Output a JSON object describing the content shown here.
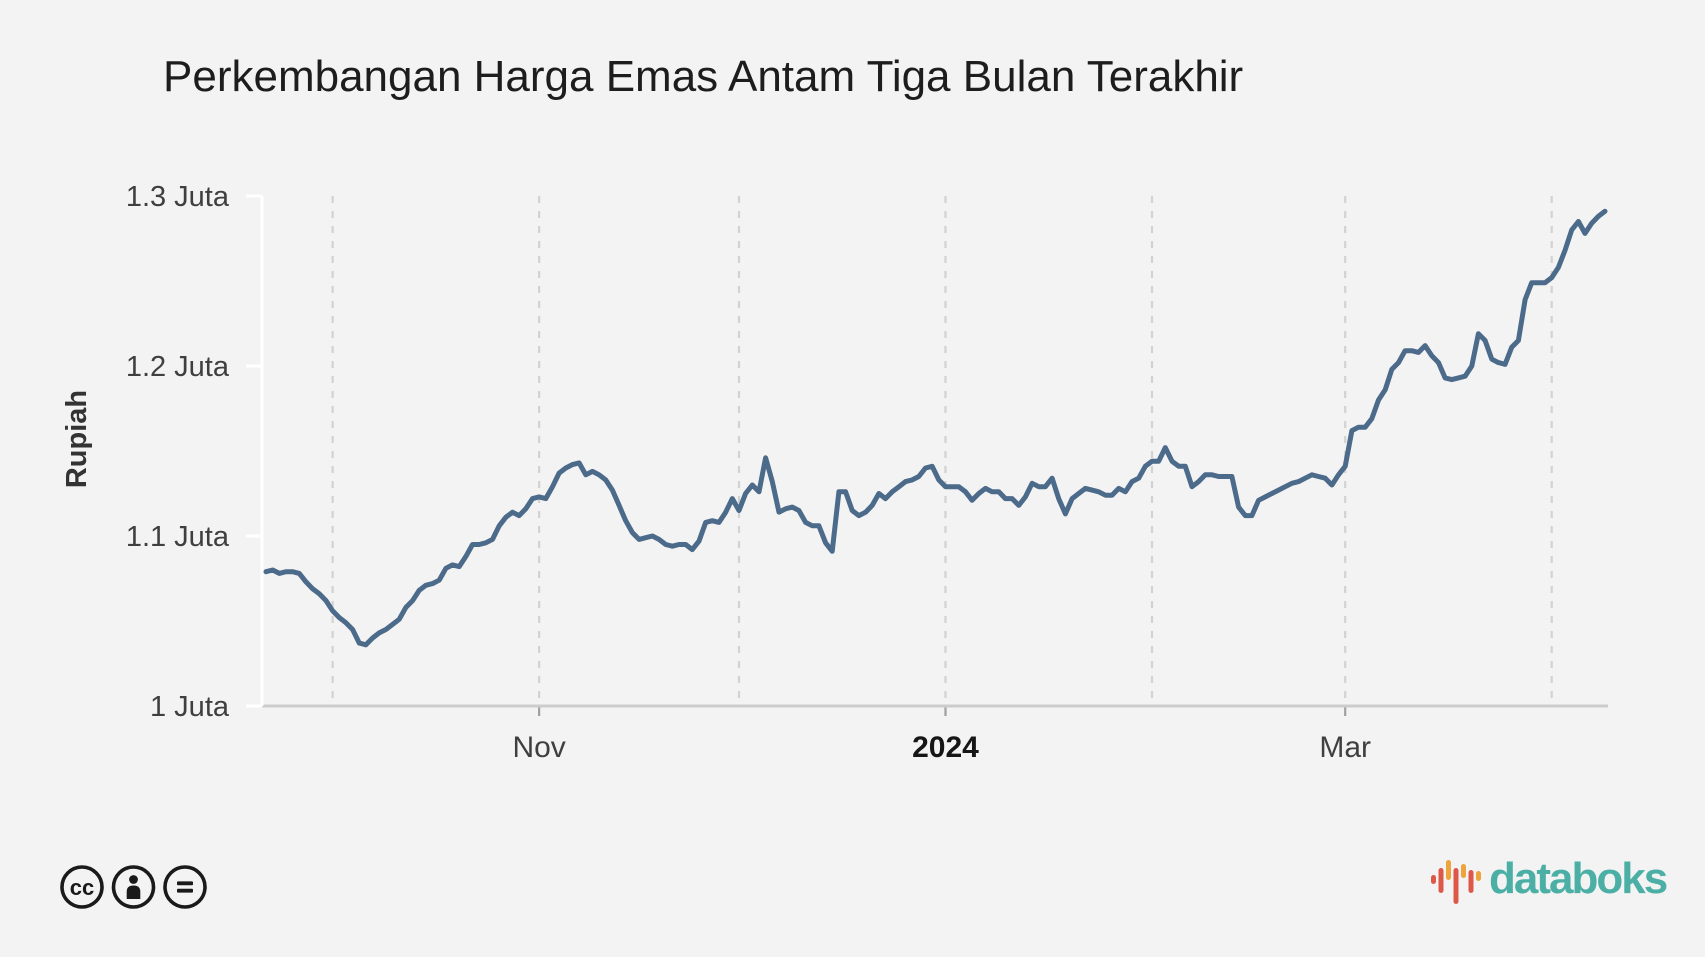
{
  "title": "Perkembangan Harga Emas Antam Tiga Bulan Terakhir",
  "y_axis": {
    "title": "Rupiah",
    "ticks": [
      {
        "value": 1.0,
        "label": "1 Juta"
      },
      {
        "value": 1.1,
        "label": "1.1 Juta"
      },
      {
        "value": 1.2,
        "label": "1.2 Juta"
      },
      {
        "value": 1.3,
        "label": "1.3 Juta"
      }
    ]
  },
  "x_axis": {
    "gridlines": [
      {
        "date": "2023-10-01",
        "label": ""
      },
      {
        "date": "2023-11-01",
        "label": "Nov",
        "bold": false
      },
      {
        "date": "2023-12-01",
        "label": ""
      },
      {
        "date": "2024-01-01",
        "label": "2024",
        "bold": true
      },
      {
        "date": "2024-02-01",
        "label": ""
      },
      {
        "date": "2024-03-01",
        "label": "Mar",
        "bold": false
      },
      {
        "date": "2024-04-01",
        "label": ""
      }
    ]
  },
  "footer": {
    "license_icons": [
      "cc",
      "by",
      "nd"
    ],
    "brand": "databoks"
  },
  "colors": {
    "background": "#f3f3f3",
    "line": "#4c6a8a",
    "gridline": "#d2d2d2",
    "axis_line": "#cccccc",
    "y_axis_line": "#ffffff",
    "tick_mark": "#a0a0a0",
    "title_text": "#1d1d1d",
    "axis_text": "#3f3f3f",
    "bold_tick_text": "#161616",
    "license_icon": "#1a1a1a",
    "brand_teal": "#4bafa5",
    "logo_orange": "#eea43c",
    "logo_red": "#de584a"
  },
  "chart_data": {
    "type": "line",
    "title": "Perkembangan Harga Emas Antam Tiga Bulan Terakhir",
    "ylabel": "Rupiah",
    "unit": "Juta Rupiah",
    "ylim": [
      1.0,
      1.3
    ],
    "grid": "vertical-dashed",
    "legend": "none",
    "frequency": "daily",
    "start_date": "2023-09-21",
    "end_date": "2024-04-09",
    "series": [
      {
        "name": "Harga emas Antam (juta rupiah)",
        "values": [
          1.079,
          1.08,
          1.078,
          1.079,
          1.079,
          1.078,
          1.073,
          1.069,
          1.066,
          1.062,
          1.056,
          1.052,
          1.049,
          1.045,
          1.037,
          1.036,
          1.04,
          1.043,
          1.045,
          1.048,
          1.051,
          1.058,
          1.062,
          1.068,
          1.071,
          1.072,
          1.074,
          1.081,
          1.083,
          1.082,
          1.088,
          1.095,
          1.095,
          1.096,
          1.098,
          1.106,
          1.111,
          1.114,
          1.112,
          1.116,
          1.122,
          1.123,
          1.122,
          1.129,
          1.137,
          1.14,
          1.142,
          1.143,
          1.136,
          1.138,
          1.136,
          1.133,
          1.127,
          1.118,
          1.109,
          1.102,
          1.098,
          1.099,
          1.1,
          1.098,
          1.095,
          1.094,
          1.095,
          1.095,
          1.092,
          1.097,
          1.108,
          1.109,
          1.108,
          1.114,
          1.122,
          1.115,
          1.125,
          1.13,
          1.126,
          1.146,
          1.132,
          1.114,
          1.116,
          1.117,
          1.115,
          1.108,
          1.106,
          1.106,
          1.096,
          1.091,
          1.126,
          1.126,
          1.115,
          1.112,
          1.114,
          1.118,
          1.125,
          1.122,
          1.126,
          1.129,
          1.132,
          1.133,
          1.135,
          1.14,
          1.141,
          1.133,
          1.129,
          1.129,
          1.129,
          1.126,
          1.121,
          1.125,
          1.128,
          1.126,
          1.126,
          1.122,
          1.122,
          1.118,
          1.123,
          1.131,
          1.129,
          1.129,
          1.134,
          1.122,
          1.113,
          1.122,
          1.125,
          1.128,
          1.127,
          1.126,
          1.124,
          1.124,
          1.128,
          1.126,
          1.132,
          1.134,
          1.141,
          1.144,
          1.144,
          1.152,
          1.144,
          1.141,
          1.141,
          1.129,
          1.132,
          1.136,
          1.136,
          1.135,
          1.135,
          1.135,
          1.117,
          1.112,
          1.112,
          1.121,
          1.123,
          1.125,
          1.127,
          1.129,
          1.131,
          1.132,
          1.134,
          1.136,
          1.135,
          1.134,
          1.13,
          1.136,
          1.141,
          1.162,
          1.164,
          1.164,
          1.169,
          1.18,
          1.186,
          1.198,
          1.202,
          1.209,
          1.209,
          1.208,
          1.212,
          1.206,
          1.202,
          1.193,
          1.192,
          1.193,
          1.194,
          1.2,
          1.219,
          1.215,
          1.204,
          1.202,
          1.201,
          1.211,
          1.215,
          1.239,
          1.249,
          1.249,
          1.249,
          1.252,
          1.258,
          1.268,
          1.28,
          1.285,
          1.278,
          1.284,
          1.288,
          1.291
        ]
      }
    ]
  }
}
